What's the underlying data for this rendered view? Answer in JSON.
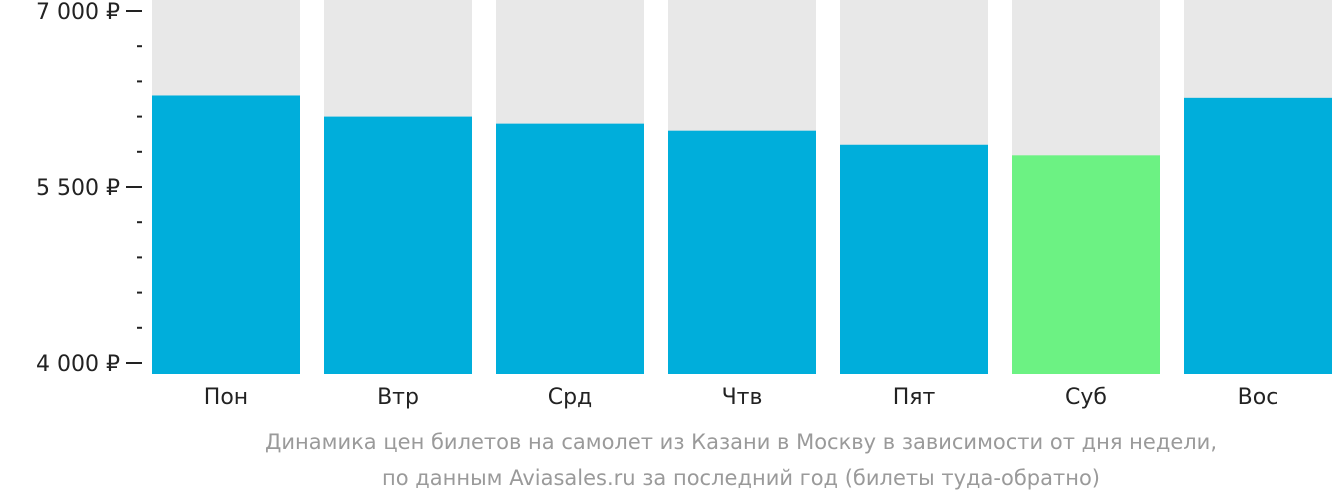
{
  "chart_data": {
    "type": "bar",
    "categories": [
      "Пон",
      "Втр",
      "Срд",
      "Чтв",
      "Пят",
      "Суб",
      "Вос"
    ],
    "values": [
      6280,
      6100,
      6040,
      5980,
      5860,
      5770,
      6260
    ],
    "highlight_index": 5,
    "ylim": [
      4000,
      7000
    ],
    "yticks": [
      {
        "value": 7000,
        "label": "7 000 ₽"
      },
      {
        "value": 5500,
        "label": "5 500 ₽"
      },
      {
        "value": 4000,
        "label": "4 000 ₽"
      }
    ],
    "minor_tick_step": 300,
    "caption_line1": "Динамика цен билетов на самолет из Казани в Москву в зависимости от дня недели,",
    "caption_line2": "по данным Aviasales.ru за последний год (билеты туда-обратно)",
    "colors": {
      "bar": "#00AEDB",
      "highlight": "#6CF283",
      "background_bar": "#E8E8E8",
      "axis": "#222222",
      "caption": "#9A9A9A"
    }
  }
}
